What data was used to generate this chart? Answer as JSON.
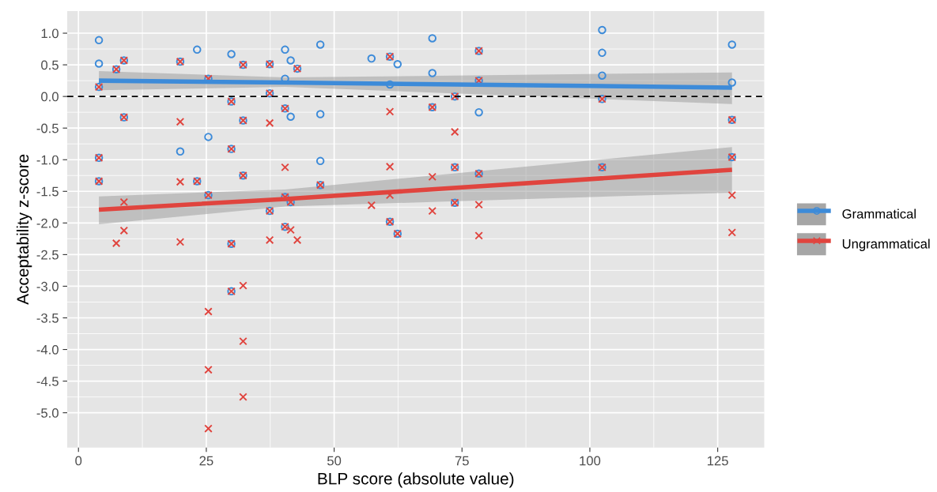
{
  "chart_data": {
    "type": "scatter",
    "xlabel": "BLP score (absolute value)",
    "ylabel": "Acceptability z-score",
    "xlim": [
      -2.2,
      134.1
    ],
    "ylim": [
      -5.55,
      1.35
    ],
    "xticks": [
      0,
      25,
      50,
      75,
      100,
      125
    ],
    "yticks": [
      {
        "value": 1,
        "label": "1.0"
      },
      {
        "value": 0.5,
        "label": "0.5"
      },
      {
        "value": 0,
        "label": "0.0"
      },
      {
        "value": -0.5,
        "label": "-0.5"
      },
      {
        "value": -1,
        "label": "-1.0"
      },
      {
        "value": -1.5,
        "label": "-1.5"
      },
      {
        "value": -2,
        "label": "-2.0"
      },
      {
        "value": -2.5,
        "label": "-2.5"
      },
      {
        "value": -3,
        "label": "-3.0"
      },
      {
        "value": -3.5,
        "label": "-3.5"
      },
      {
        "value": -4,
        "label": "-4.0"
      },
      {
        "value": -4.5,
        "label": "-4.5"
      },
      {
        "value": -5,
        "label": "-5.0"
      }
    ],
    "grid": true,
    "legend": "right",
    "ref_lines": [
      {
        "axis": "y",
        "value": 0,
        "color": "#000000",
        "line_style": "dashed"
      }
    ],
    "series": [
      {
        "name": "Grammatical",
        "marker": "circle",
        "color": "#3d8bd9",
        "x": [
          4.0,
          4.0,
          4.0,
          4.0,
          4.0,
          7.4,
          8.9,
          8.9,
          19.9,
          19.9,
          23.2,
          23.2,
          25.4,
          25.4,
          25.4,
          29.9,
          29.9,
          29.9,
          29.9,
          29.9,
          32.2,
          32.2,
          32.2,
          37.4,
          37.4,
          37.4,
          40.4,
          40.4,
          40.4,
          40.4,
          40.4,
          41.5,
          41.5,
          41.5,
          42.8,
          47.3,
          47.3,
          47.3,
          47.3,
          57.3,
          60.9,
          60.9,
          60.9,
          62.4,
          62.4,
          69.2,
          69.2,
          69.2,
          73.6,
          73.6,
          73.6,
          78.3,
          78.3,
          78.3,
          78.3,
          102.4,
          102.4,
          102.4,
          102.4,
          102.4,
          127.8,
          127.8,
          127.8,
          127.8
        ],
        "values": [
          0.89,
          0.52,
          0.15,
          -0.97,
          -1.34,
          0.43,
          0.57,
          -0.33,
          0.55,
          -0.87,
          0.74,
          -1.34,
          0.28,
          -0.64,
          -1.56,
          0.67,
          -0.08,
          -0.83,
          -2.33,
          -3.08,
          0.5,
          -0.38,
          -1.25,
          0.51,
          0.05,
          -1.81,
          0.74,
          0.28,
          -0.19,
          -1.59,
          -2.06,
          0.57,
          -0.32,
          -1.67,
          0.44,
          0.82,
          -0.28,
          -1.02,
          -1.4,
          0.6,
          0.63,
          0.19,
          -1.98,
          0.51,
          -2.17,
          0.92,
          0.37,
          -0.17,
          0.0,
          -1.12,
          -1.68,
          0.72,
          0.25,
          -0.25,
          -1.22,
          1.05,
          0.69,
          0.33,
          -0.04,
          -1.12,
          0.82,
          0.22,
          -0.37,
          -0.96
        ]
      },
      {
        "name": "Ungrammatical",
        "marker": "cross",
        "color": "#e0443e",
        "x": [
          4.0,
          4.0,
          4.0,
          7.4,
          7.4,
          8.9,
          8.9,
          8.9,
          8.9,
          19.9,
          19.9,
          19.9,
          19.9,
          23.2,
          25.4,
          25.4,
          25.4,
          25.4,
          25.4,
          29.9,
          29.9,
          29.9,
          29.9,
          32.2,
          32.2,
          32.2,
          32.2,
          32.2,
          32.2,
          37.4,
          37.4,
          37.4,
          37.4,
          37.4,
          40.4,
          40.4,
          40.4,
          40.4,
          41.5,
          41.5,
          42.8,
          42.8,
          47.3,
          57.3,
          60.9,
          60.9,
          60.9,
          60.9,
          60.9,
          62.4,
          69.2,
          69.2,
          69.2,
          73.6,
          73.6,
          73.6,
          73.6,
          78.3,
          78.3,
          78.3,
          78.3,
          78.3,
          102.4,
          102.4,
          127.8,
          127.8,
          127.8,
          127.8
        ],
        "values": [
          0.15,
          -0.97,
          -1.34,
          0.43,
          -2.32,
          0.57,
          -0.33,
          -1.67,
          -2.12,
          0.55,
          -0.4,
          -1.35,
          -2.3,
          -1.34,
          0.28,
          -1.56,
          -3.4,
          -4.32,
          -5.25,
          -0.08,
          -0.83,
          -2.33,
          -3.08,
          0.5,
          -0.38,
          -1.25,
          -2.99,
          -3.87,
          -4.75,
          0.51,
          0.05,
          -0.42,
          -1.81,
          -2.27,
          -0.19,
          -1.12,
          -1.59,
          -2.06,
          -1.67,
          -2.11,
          0.44,
          -2.27,
          -1.4,
          -1.72,
          0.63,
          -0.24,
          -1.11,
          -1.56,
          -1.98,
          -2.17,
          -0.17,
          -1.27,
          -1.81,
          0.0,
          -0.56,
          -1.12,
          -1.68,
          0.72,
          0.25,
          -1.22,
          -1.71,
          -2.2,
          -0.04,
          -1.12,
          -0.37,
          -0.96,
          -1.56,
          -2.15
        ]
      },
      {
        "type": "line",
        "color": "#3d8bd9",
        "x": [
          4.0,
          40.4,
          127.8
        ],
        "values": [
          0.25,
          0.22,
          0.14
        ],
        "lower": [
          0.1,
          0.15,
          -0.12
        ],
        "upper": [
          0.4,
          0.3,
          0.38
        ]
      },
      {
        "type": "line",
        "color": "#e0443e",
        "x": [
          4.0,
          40.4,
          127.8
        ],
        "values": [
          -1.79,
          -1.62,
          -1.16
        ],
        "lower": [
          -2.02,
          -1.74,
          -1.52
        ],
        "upper": [
          -1.58,
          -1.47,
          -0.8
        ]
      }
    ]
  }
}
